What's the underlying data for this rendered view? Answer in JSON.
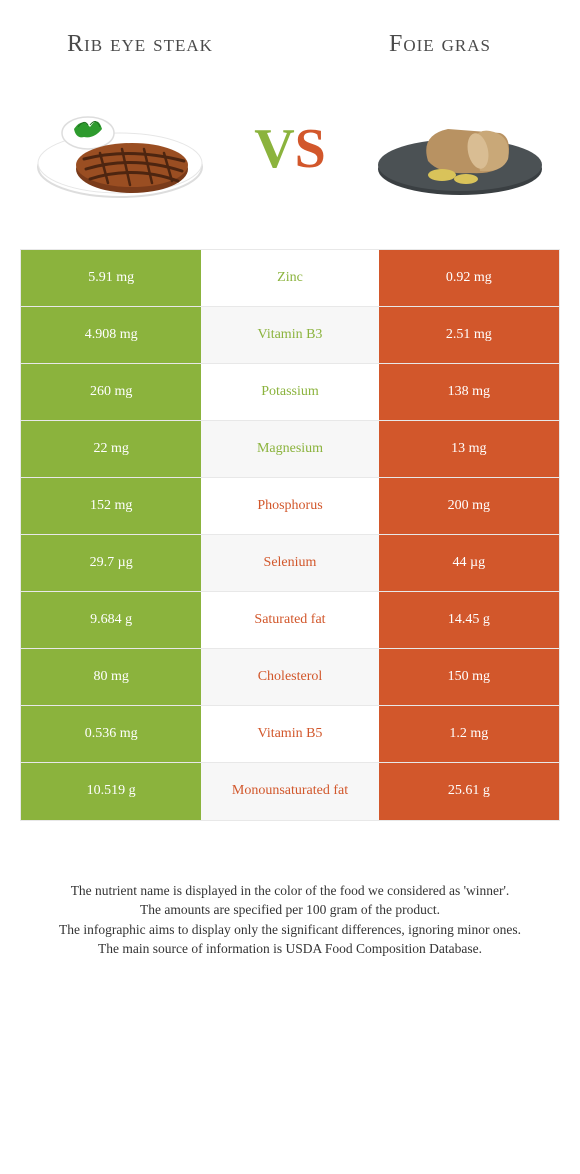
{
  "colors": {
    "green": "#8bb33d",
    "orange": "#d2572b",
    "alt_bg": "#f7f7f7",
    "cell_text": "#ffffff",
    "title_color": "#4a4a4a",
    "footer_color": "#333333"
  },
  "left_food": {
    "title": "Rib eye steak"
  },
  "right_food": {
    "title": "Foie gras"
  },
  "vs": {
    "v": "V",
    "s": "S"
  },
  "rows": [
    {
      "name": "Zinc",
      "left": "5.91 mg",
      "right": "0.92 mg",
      "winner": "left"
    },
    {
      "name": "Vitamin B3",
      "left": "4.908 mg",
      "right": "2.51 mg",
      "winner": "left"
    },
    {
      "name": "Potassium",
      "left": "260 mg",
      "right": "138 mg",
      "winner": "left"
    },
    {
      "name": "Magnesium",
      "left": "22 mg",
      "right": "13 mg",
      "winner": "left"
    },
    {
      "name": "Phosphorus",
      "left": "152 mg",
      "right": "200 mg",
      "winner": "right"
    },
    {
      "name": "Selenium",
      "left": "29.7 µg",
      "right": "44 µg",
      "winner": "right"
    },
    {
      "name": "Saturated fat",
      "left": "9.684 g",
      "right": "14.45 g",
      "winner": "right"
    },
    {
      "name": "Cholesterol",
      "left": "80 mg",
      "right": "150 mg",
      "winner": "right"
    },
    {
      "name": "Vitamin B5",
      "left": "0.536 mg",
      "right": "1.2 mg",
      "winner": "right"
    },
    {
      "name": "Monounsaturated fat",
      "left": "10.519 g",
      "right": "25.61 g",
      "winner": "right"
    }
  ],
  "footer": {
    "l1": "The nutrient name is displayed in the color of the food we considered as 'winner'.",
    "l2": "The amounts are specified per 100 gram of the product.",
    "l3": "The infographic aims to display only the significant differences, ignoring minor ones.",
    "l4": "The main source of information is USDA Food Composition Database."
  }
}
